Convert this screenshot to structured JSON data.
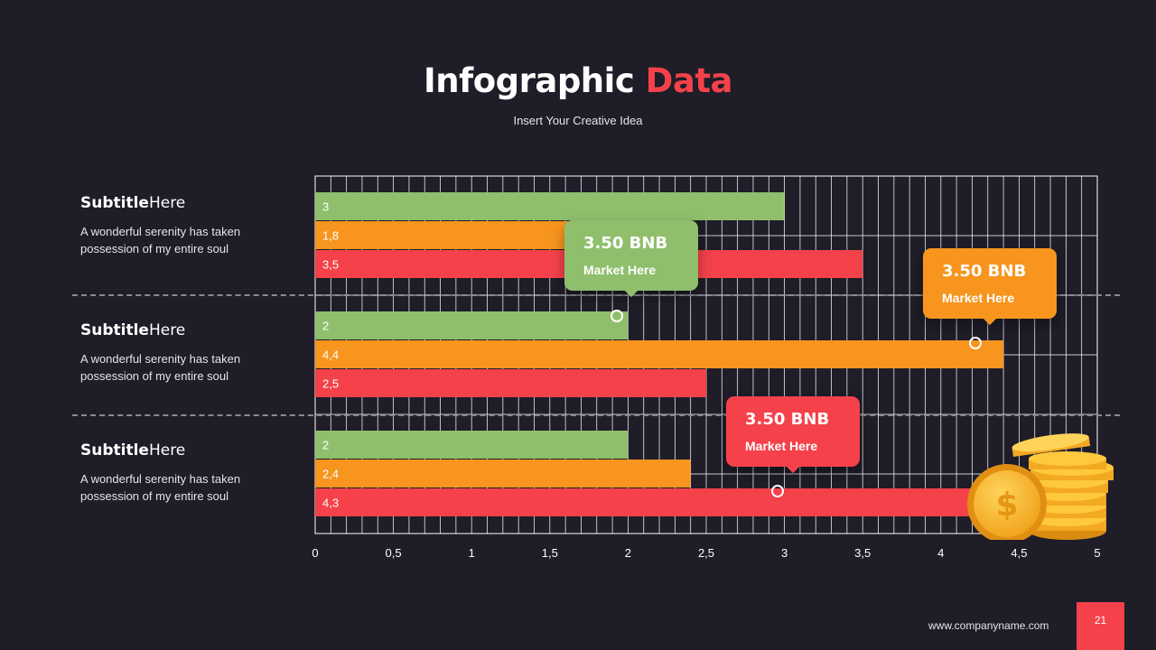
{
  "header": {
    "title_main": "Infographic",
    "title_accent": "Data",
    "subtitle": "Insert Your Creative Idea"
  },
  "groups": [
    {
      "title_bold": "Subtitle",
      "title_rest": "Here",
      "text_line1": "A wonderful serenity has taken",
      "text_line2": "possession of my entire soul"
    },
    {
      "title_bold": "Subtitle",
      "title_rest": "Here",
      "text_line1": "A wonderful serenity has taken",
      "text_line2": "possession of my entire soul"
    },
    {
      "title_bold": "Subtitle",
      "title_rest": "Here",
      "text_line1": "A wonderful serenity has taken",
      "text_line2": "possession of my entire soul"
    }
  ],
  "callouts": [
    {
      "value": "3.50 BNB",
      "label": "Market Here",
      "color": "#8fbf6c"
    },
    {
      "value": "3.50 BNB",
      "label": "Market Here",
      "color": "#f7951e"
    },
    {
      "value": "3.50 BNB",
      "label": "Market Here",
      "color": "#f4414a"
    }
  ],
  "coin_icon": "coin-stack-icon",
  "footer": {
    "url": "www.companyname.com",
    "page": "21"
  },
  "colors": {
    "green": "#8fbf6c",
    "orange": "#f7951e",
    "red": "#f4414a",
    "background": "#1e1d28"
  },
  "chart_data": {
    "type": "bar",
    "orientation": "horizontal",
    "xlim": [
      0,
      5
    ],
    "tick_values": [
      0,
      0.5,
      1,
      1.5,
      2,
      2.5,
      3,
      3.5,
      4,
      4.5,
      5
    ],
    "tick_labels": [
      "0",
      "0,5",
      "1",
      "1,5",
      "2",
      "2,5",
      "3",
      "3,5",
      "4",
      "4,5",
      "5"
    ],
    "grid": true,
    "groups": [
      {
        "bars": [
          {
            "value": 3,
            "label": "3",
            "color": "#8fbf6c"
          },
          {
            "value": 1.8,
            "label": "1,8",
            "color": "#f7951e"
          },
          {
            "value": 3.5,
            "label": "3,5",
            "color": "#f4414a"
          }
        ]
      },
      {
        "bars": [
          {
            "value": 2,
            "label": "2",
            "color": "#8fbf6c"
          },
          {
            "value": 4.4,
            "label": "4,4",
            "color": "#f7951e"
          },
          {
            "value": 2.5,
            "label": "2,5",
            "color": "#f4414a"
          }
        ]
      },
      {
        "bars": [
          {
            "value": 2,
            "label": "2",
            "color": "#8fbf6c"
          },
          {
            "value": 2.4,
            "label": "2,4",
            "color": "#f7951e"
          },
          {
            "value": 4.3,
            "label": "4,3",
            "color": "#f4414a"
          }
        ]
      }
    ]
  }
}
